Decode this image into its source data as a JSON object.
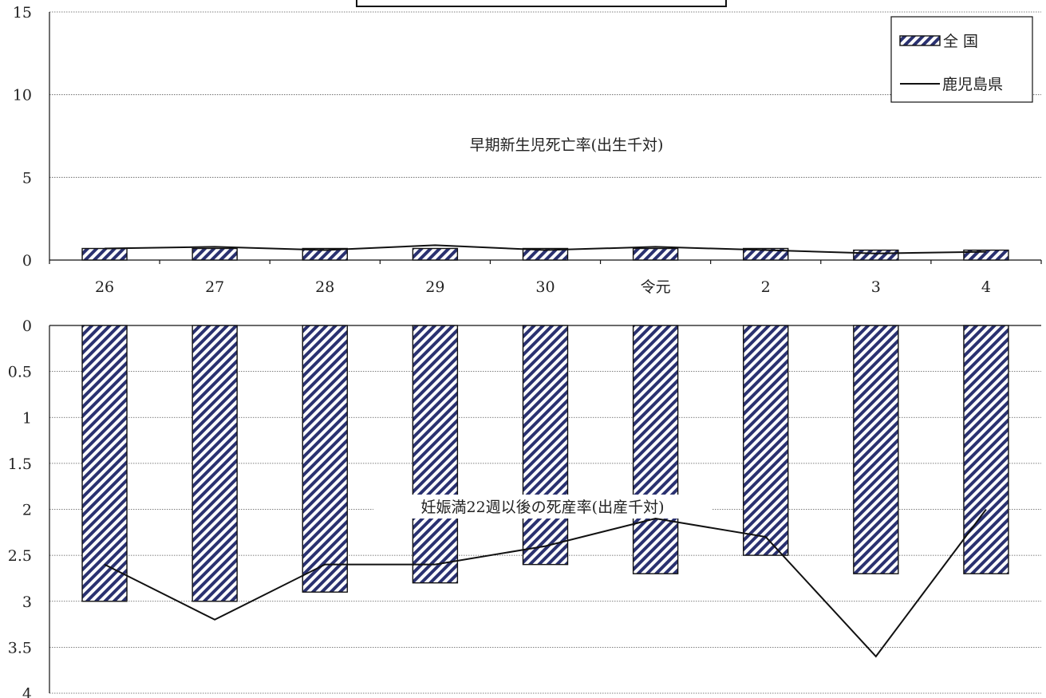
{
  "chart_data": [
    {
      "type": "bar",
      "annotation": "早期新生児死亡率(出生千対)",
      "categories": [
        "26",
        "27",
        "28",
        "29",
        "30",
        "令元",
        "2",
        "3",
        "4"
      ],
      "ylim": [
        0,
        15
      ],
      "yticks": [
        0,
        5,
        10,
        15
      ],
      "grid": true,
      "legend_position": "top-right",
      "series": [
        {
          "name": "全 国",
          "type": "bar",
          "values": [
            0.7,
            0.7,
            0.7,
            0.7,
            0.7,
            0.7,
            0.7,
            0.6,
            0.6
          ]
        },
        {
          "name": "鹿児島県",
          "type": "line",
          "values": [
            0.7,
            0.8,
            0.6,
            0.9,
            0.6,
            0.8,
            0.6,
            0.4,
            0.5
          ]
        }
      ]
    },
    {
      "type": "bar",
      "annotation": "妊娠満22週以後の死産率(出産千対)",
      "categories": [
        "26",
        "27",
        "28",
        "29",
        "30",
        "令元",
        "2",
        "3",
        "4"
      ],
      "ylim": [
        0,
        4
      ],
      "y_inverted": true,
      "yticks": [
        0,
        0.5,
        1,
        1.5,
        2,
        2.5,
        3,
        3.5,
        4
      ],
      "grid": true,
      "series": [
        {
          "name": "全 国",
          "type": "bar",
          "values": [
            3.0,
            3.0,
            2.9,
            2.8,
            2.6,
            2.7,
            2.5,
            2.7,
            2.7
          ]
        },
        {
          "name": "鹿児島県",
          "type": "line",
          "values": [
            2.6,
            3.2,
            2.6,
            2.6,
            2.4,
            2.1,
            2.3,
            3.6,
            2.0
          ]
        }
      ]
    }
  ]
}
